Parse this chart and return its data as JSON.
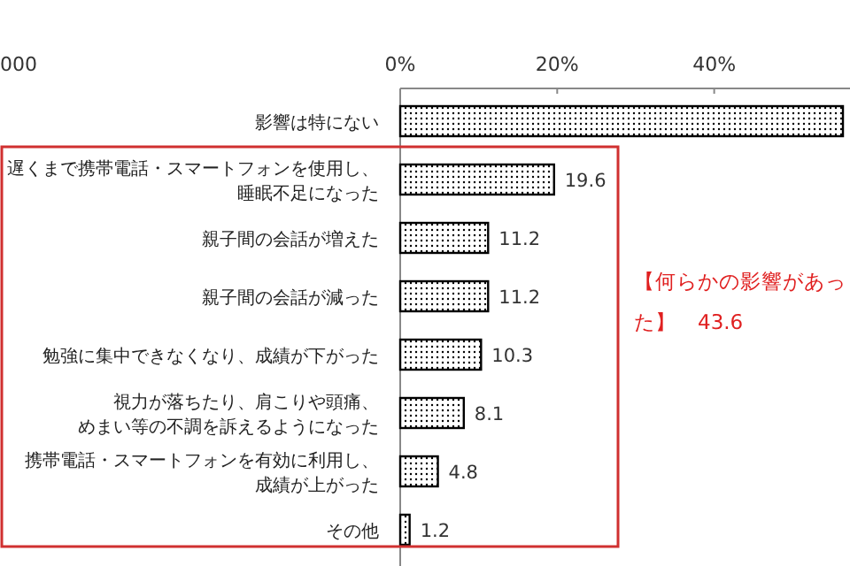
{
  "chart_data": {
    "type": "bar",
    "orientation": "horizontal",
    "categories": [
      "影響は特にない",
      "遅くまで携帯電話・スマートフォンを使用し、睡眠不足になった",
      "親子間の会話が増えた",
      "親子間の会話が減った",
      "勉強に集中できなくなり、成績が下がった",
      "視力が落ちたり、肩こりや頭痛、めまい等の不調を訴えるようになった",
      "携帯電話・スマートフォンを有効に利用し、成績が上がった",
      "その他"
    ],
    "values": [
      56.4,
      19.6,
      11.2,
      11.2,
      10.3,
      8.1,
      4.8,
      1.2
    ],
    "value_labels": [
      null,
      "19.6",
      "11.2",
      "11.2",
      "10.3",
      "8.1",
      "4.8",
      "1.2"
    ],
    "color": "#000000",
    "xlim": [
      0,
      57.3
    ],
    "xticks": [
      {
        "value": 0,
        "label": "0%"
      },
      {
        "value": 20,
        "label": "20%"
      },
      {
        "value": 40,
        "label": "40%"
      }
    ],
    "grid": false,
    "annotations": [
      "000",
      "【何らかの影響があった】　43.6"
    ]
  }
}
